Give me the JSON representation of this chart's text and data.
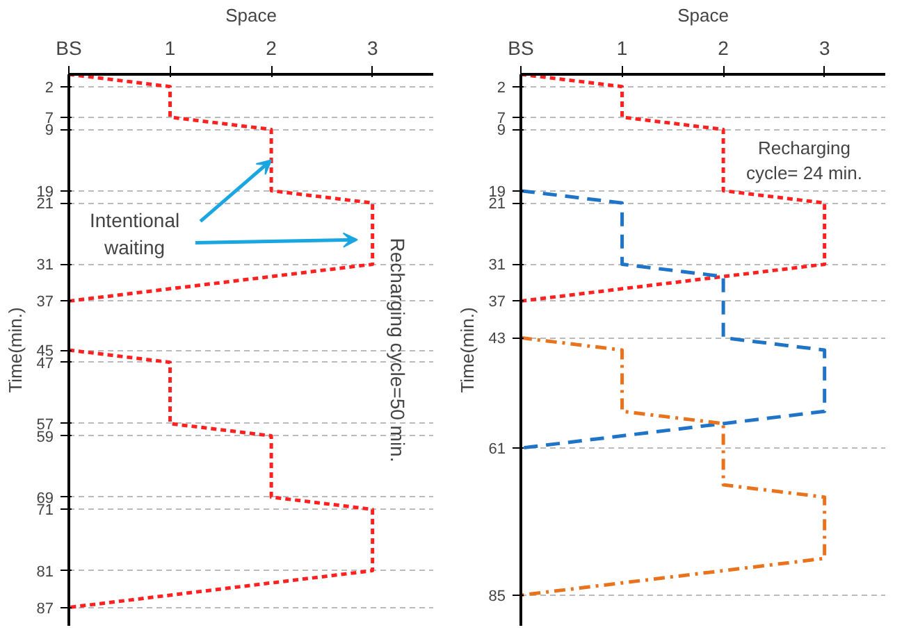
{
  "chart_data": [
    {
      "type": "line",
      "xlabel": "Space",
      "ylabel": "Time(min.)",
      "xlim": [
        0,
        3.6
      ],
      "ylim": [
        90,
        0
      ],
      "xticks": [
        {
          "value": 0,
          "label": "BS"
        },
        {
          "value": 1,
          "label": "1"
        },
        {
          "value": 2,
          "label": "2"
        },
        {
          "value": 3,
          "label": "3"
        }
      ],
      "yticks": [
        2,
        7,
        9,
        19,
        21,
        31,
        37,
        45,
        47,
        57,
        59,
        69,
        71,
        81,
        87
      ],
      "grid": "y",
      "series": [
        {
          "color": "#ff2020",
          "line_style": "dotted",
          "x": [
            0,
            1,
            1,
            2,
            2,
            3,
            3,
            0,
            null,
            0,
            1,
            1,
            2,
            2,
            3,
            3,
            0
          ],
          "values": [
            0,
            2,
            7,
            9,
            19,
            21,
            31,
            37,
            null,
            45,
            47,
            57,
            59,
            69,
            71,
            81,
            87
          ]
        }
      ],
      "annotations": [
        {
          "text": "Intentional waiting",
          "x": 2,
          "y": 14
        },
        "Recharging cycle=50 min."
      ]
    },
    {
      "type": "line",
      "xlabel": "Space",
      "ylabel": "Time(min.)",
      "xlim": [
        0,
        3.6
      ],
      "ylim": [
        90,
        0
      ],
      "xticks": [
        {
          "value": 0,
          "label": "BS"
        },
        {
          "value": 1,
          "label": "1"
        },
        {
          "value": 2,
          "label": "2"
        },
        {
          "value": 3,
          "label": "3"
        }
      ],
      "yticks": [
        2,
        7,
        9,
        19,
        21,
        31,
        37,
        43,
        61,
        85
      ],
      "grid": "y",
      "series": [
        {
          "color": "#ff2020",
          "line_style": "dotted",
          "x": [
            0,
            1,
            1,
            2,
            2,
            3,
            3,
            0
          ],
          "values": [
            0,
            2,
            7,
            9,
            19,
            21,
            31,
            37
          ]
        },
        {
          "color": "#1f74c8",
          "line_style": "dashed",
          "x": [
            0,
            1,
            1,
            2,
            2,
            3,
            3,
            0
          ],
          "values": [
            19,
            21,
            31,
            33,
            43,
            45,
            55,
            61
          ]
        },
        {
          "color": "#e8731c",
          "line_style": "dashdot",
          "x": [
            0,
            1,
            1,
            2,
            2,
            3,
            3,
            0
          ],
          "values": [
            43,
            45,
            55,
            57,
            67,
            69,
            79,
            85
          ]
        }
      ],
      "annotations": [
        "Recharging cycle= 24 min."
      ]
    }
  ]
}
